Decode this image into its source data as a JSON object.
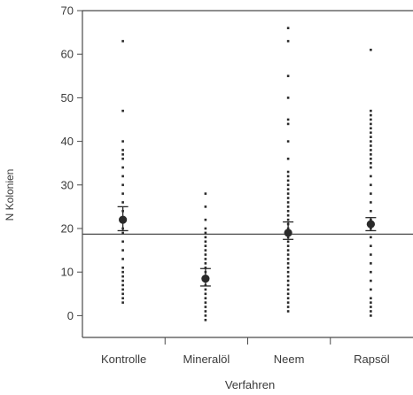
{
  "chart_data": {
    "type": "scatter",
    "title": "",
    "xlabel": "Verfahren",
    "ylabel": "N Kolonien",
    "ylim": [
      -5,
      70
    ],
    "yticks": [
      0,
      10,
      20,
      30,
      40,
      50,
      60,
      70
    ],
    "ytick_labels": [
      "0",
      "10",
      "20",
      "30",
      "40",
      "50",
      "60",
      "70"
    ],
    "categories": [
      "Kontrolle",
      "Mineralöl",
      "Neem",
      "Rapsöl"
    ],
    "grid": false,
    "legend": "none",
    "reference_line": 18.7,
    "groups": [
      {
        "category": "Kontrolle",
        "points": [
          3,
          4,
          5,
          6,
          7,
          8,
          9,
          10,
          11,
          13,
          15,
          17,
          19,
          20,
          22,
          24,
          26,
          28,
          30,
          32,
          34,
          36,
          37,
          38,
          40,
          47,
          63
        ],
        "mean": 22,
        "ci": [
          19.5,
          25
        ]
      },
      {
        "category": "Mineralöl",
        "points": [
          -1,
          0,
          1,
          2,
          3,
          4,
          5,
          6,
          7,
          8,
          9,
          10,
          11,
          12,
          13,
          14,
          15,
          16,
          17,
          18,
          19,
          20,
          22,
          25,
          28
        ],
        "mean": 8.5,
        "ci": [
          6.8,
          10.8
        ]
      },
      {
        "category": "Neem",
        "points": [
          1,
          2,
          3,
          4,
          5,
          6,
          7,
          8,
          9,
          10,
          11,
          12,
          13,
          14,
          15,
          16,
          17,
          18,
          19,
          20,
          21,
          22,
          23,
          24,
          25,
          26,
          27,
          28,
          29,
          30,
          31,
          32,
          33,
          36,
          40,
          44,
          45,
          50,
          55,
          63,
          66
        ],
        "mean": 19,
        "ci": [
          17.5,
          21.5
        ]
      },
      {
        "category": "Rapsöl",
        "points": [
          0,
          1,
          2,
          3,
          4,
          6,
          8,
          10,
          12,
          14,
          16,
          18,
          20,
          22,
          24,
          26,
          28,
          30,
          32,
          34,
          35,
          36,
          37,
          38,
          39,
          40,
          41,
          42,
          43,
          44,
          45,
          46,
          47,
          61
        ],
        "mean": 21,
        "ci": [
          19.5,
          22.5
        ]
      }
    ]
  },
  "colors": {
    "points": "#2a2a2a",
    "axes": "#4a4a4a",
    "text": "#3a3a3a"
  }
}
